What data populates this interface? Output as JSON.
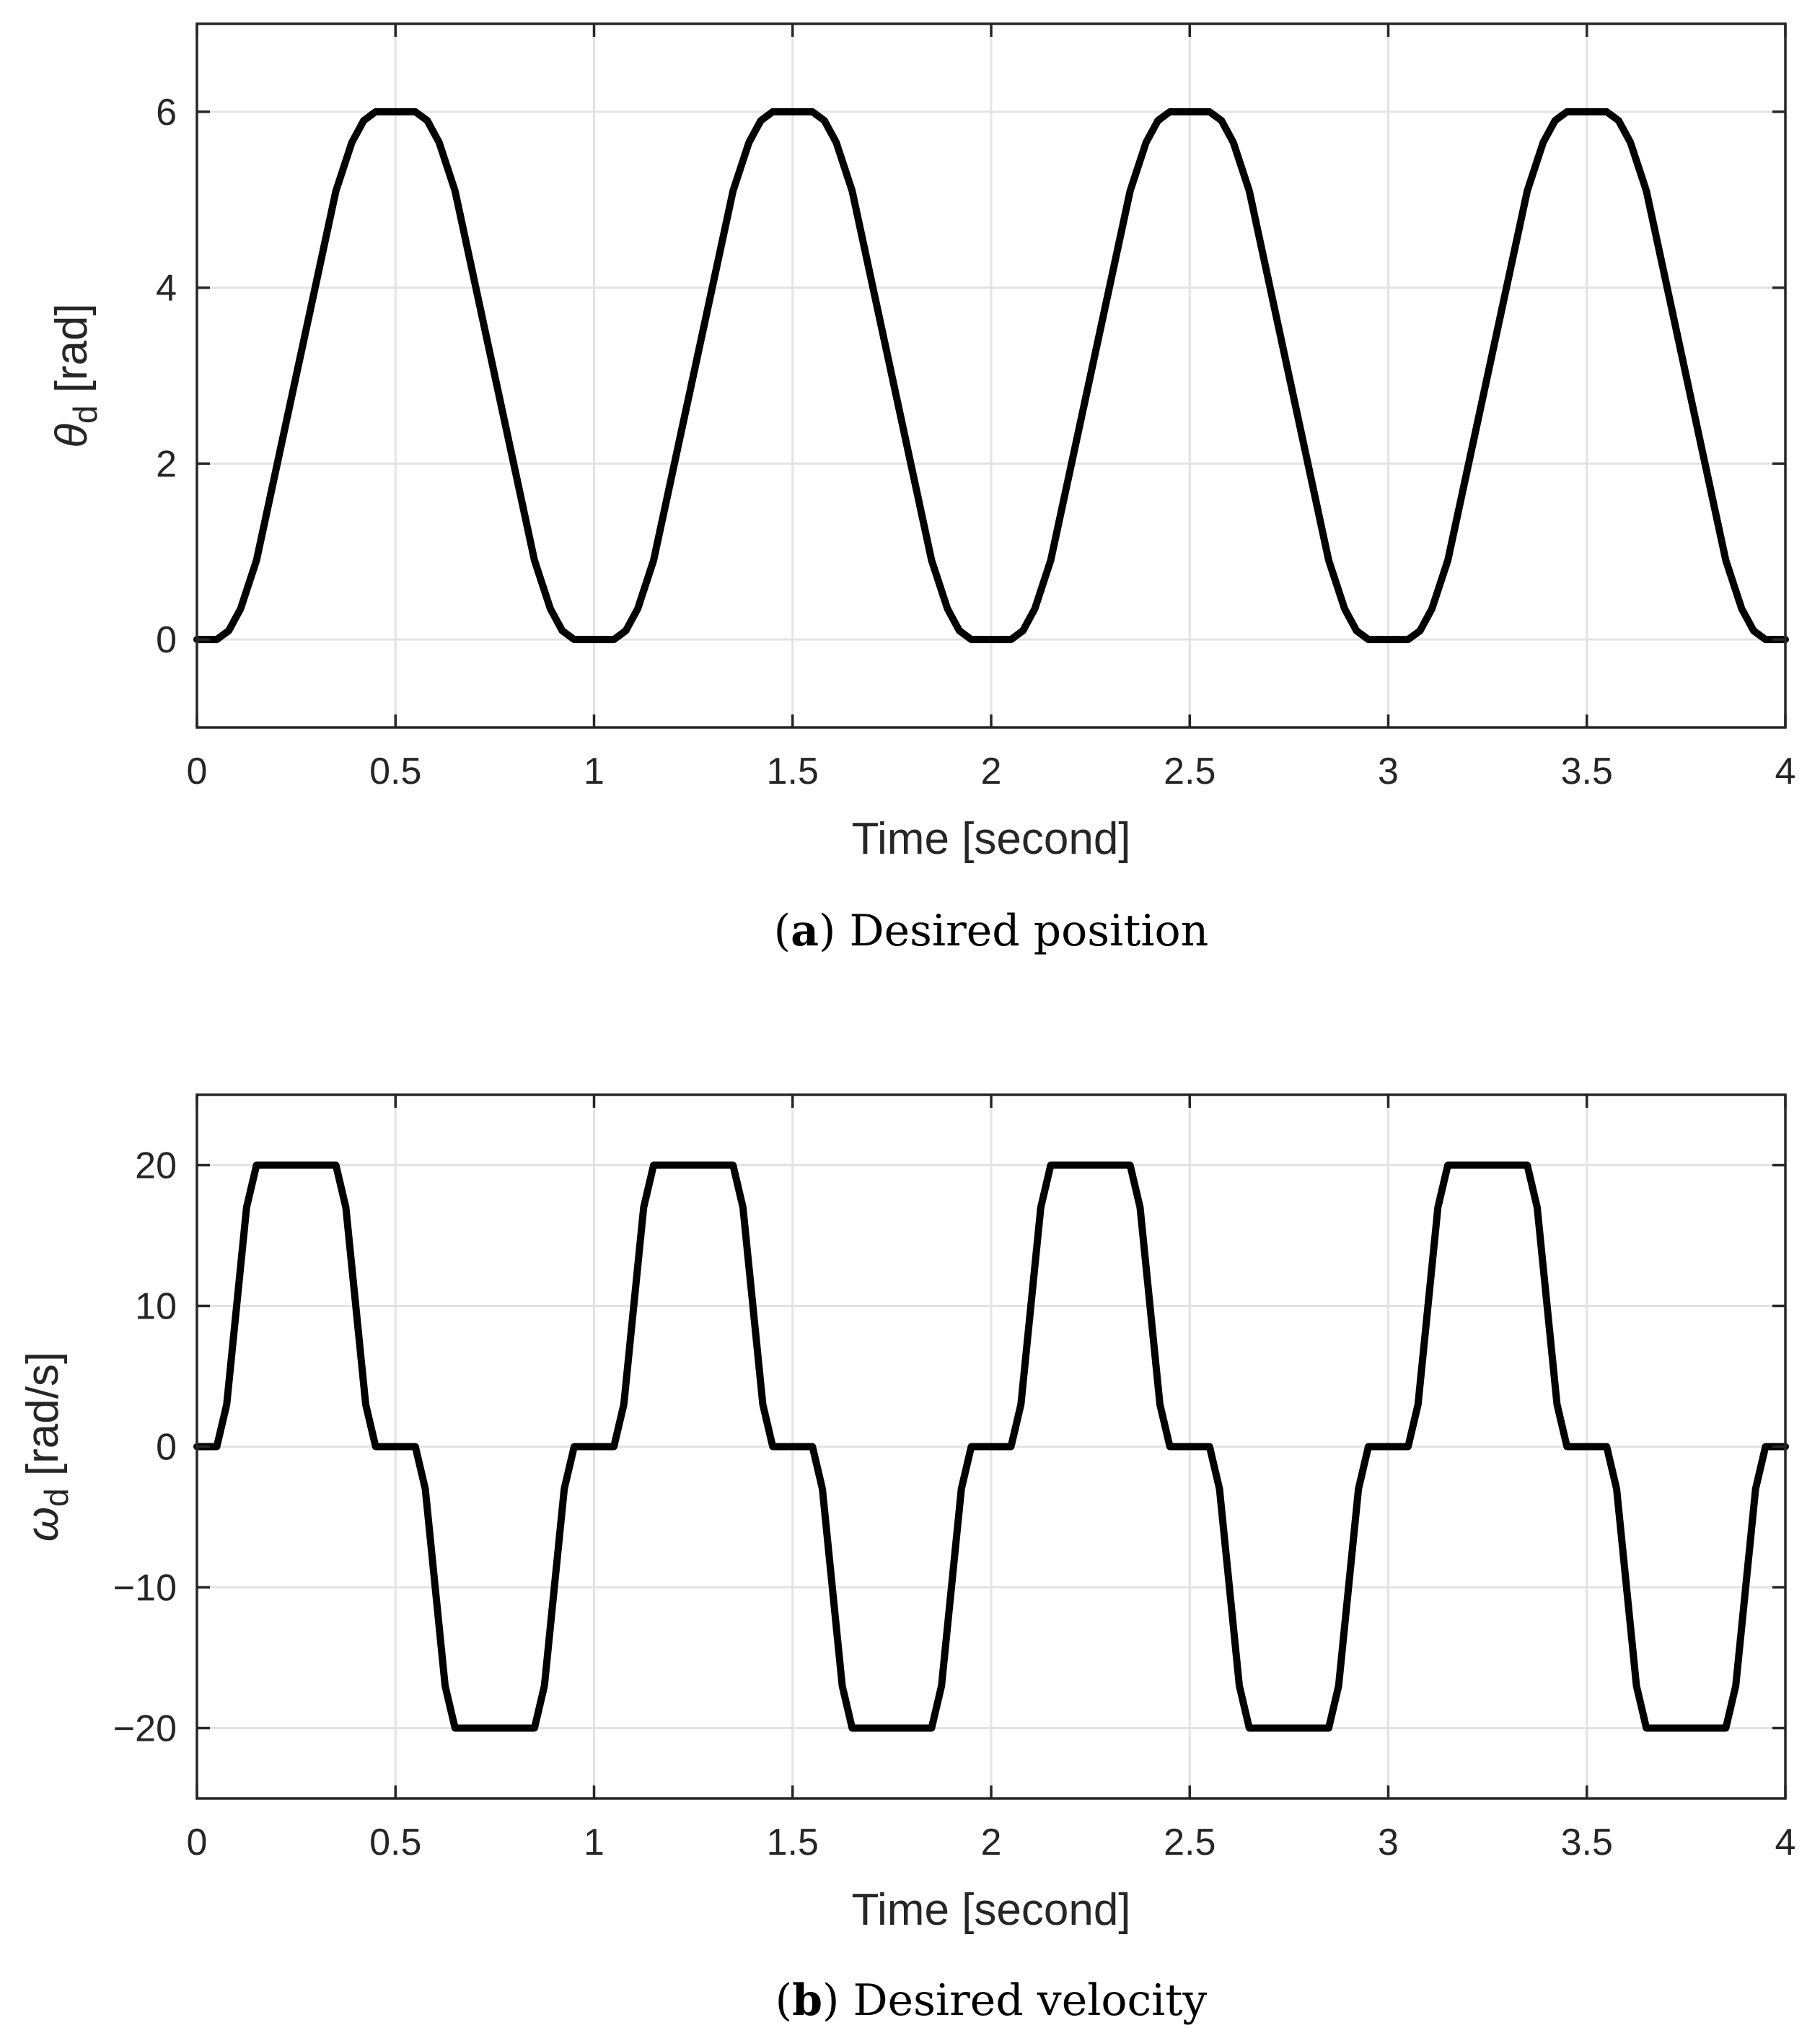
{
  "chart_data": [
    {
      "type": "line",
      "caption_letter": "a",
      "caption_text": "Desired position",
      "xlabel": "Time [second]",
      "ylabel_symbol": "θ",
      "ylabel_subscript": "d",
      "ylabel_unit": " [rad]",
      "xlim": [
        0,
        4
      ],
      "ylim": [
        -1,
        7
      ],
      "xticks": [
        0,
        0.5,
        1,
        1.5,
        2,
        2.5,
        3,
        3.5,
        4
      ],
      "xtick_labels": [
        "0",
        "0.5",
        "1",
        "1.5",
        "2",
        "2.5",
        "3",
        "3.5",
        "4"
      ],
      "yticks": [
        0,
        2,
        4,
        6
      ],
      "ytick_labels": [
        "0",
        "2",
        "4",
        "6"
      ],
      "grid": true,
      "series": [
        {
          "color": "#000000",
          "x": [
            0,
            0.05,
            0.08,
            0.11,
            0.15,
            0.35,
            0.39,
            0.42,
            0.45,
            0.55,
            0.58,
            0.61,
            0.65,
            0.85,
            0.89,
            0.92,
            0.95,
            1.05,
            1.08,
            1.11,
            1.15,
            1.35,
            1.39,
            1.42,
            1.45,
            1.55,
            1.58,
            1.61,
            1.65,
            1.85,
            1.89,
            1.92,
            1.95,
            2.05,
            2.08,
            2.11,
            2.15,
            2.35,
            2.39,
            2.42,
            2.45,
            2.55,
            2.58,
            2.61,
            2.65,
            2.85,
            2.89,
            2.92,
            2.95,
            3.05,
            3.08,
            3.11,
            3.15,
            3.35,
            3.39,
            3.42,
            3.45,
            3.55,
            3.58,
            3.61,
            3.65,
            3.85,
            3.89,
            3.92,
            3.95,
            4.0
          ],
          "y": [
            0,
            0,
            0.1,
            0.35,
            0.9,
            5.1,
            5.65,
            5.9,
            6,
            6,
            5.9,
            5.65,
            5.1,
            0.9,
            0.35,
            0.1,
            0,
            0,
            0.1,
            0.35,
            0.9,
            5.1,
            5.65,
            5.9,
            6,
            6,
            5.9,
            5.65,
            5.1,
            0.9,
            0.35,
            0.1,
            0,
            0,
            0.1,
            0.35,
            0.9,
            5.1,
            5.65,
            5.9,
            6,
            6,
            5.9,
            5.65,
            5.1,
            0.9,
            0.35,
            0.1,
            0,
            0,
            0.1,
            0.35,
            0.9,
            5.1,
            5.65,
            5.9,
            6,
            6,
            5.9,
            5.65,
            5.1,
            0.9,
            0.35,
            0.1,
            0,
            0
          ]
        }
      ]
    },
    {
      "type": "line",
      "caption_letter": "b",
      "caption_text": "Desired velocity",
      "xlabel": "Time [second]",
      "ylabel_symbol": "ω",
      "ylabel_subscript": "d",
      "ylabel_unit": " [rad/s]",
      "xlim": [
        0,
        4
      ],
      "ylim": [
        -25,
        25
      ],
      "xticks": [
        0,
        0.5,
        1,
        1.5,
        2,
        2.5,
        3,
        3.5,
        4
      ],
      "xtick_labels": [
        "0",
        "0.5",
        "1",
        "1.5",
        "2",
        "2.5",
        "3",
        "3.5",
        "4"
      ],
      "yticks": [
        -20,
        -10,
        0,
        10,
        20
      ],
      "ytick_labels": [
        "−20",
        "−10",
        "0",
        "10",
        "20"
      ],
      "grid": true,
      "series": [
        {
          "color": "#000000",
          "x": [
            0,
            0.05,
            0.075,
            0.1,
            0.125,
            0.15,
            0.35,
            0.375,
            0.4,
            0.425,
            0.45,
            0.55,
            0.575,
            0.6,
            0.625,
            0.65,
            0.85,
            0.875,
            0.9,
            0.925,
            0.95,
            1.05,
            1.075,
            1.1,
            1.125,
            1.15,
            1.35,
            1.375,
            1.4,
            1.425,
            1.45,
            1.55,
            1.575,
            1.6,
            1.625,
            1.65,
            1.85,
            1.875,
            1.9,
            1.925,
            1.95,
            2.05,
            2.075,
            2.1,
            2.125,
            2.15,
            2.35,
            2.375,
            2.4,
            2.425,
            2.45,
            2.55,
            2.575,
            2.6,
            2.625,
            2.65,
            2.85,
            2.875,
            2.9,
            2.925,
            2.95,
            3.05,
            3.075,
            3.1,
            3.125,
            3.15,
            3.35,
            3.375,
            3.4,
            3.425,
            3.45,
            3.55,
            3.575,
            3.6,
            3.625,
            3.65,
            3.85,
            3.875,
            3.9,
            3.925,
            3.95,
            4.0
          ],
          "y": [
            0,
            0,
            3,
            10,
            17,
            20,
            20,
            17,
            10,
            3,
            0,
            0,
            -3,
            -10,
            -17,
            -20,
            -20,
            -17,
            -10,
            -3,
            0,
            0,
            3,
            10,
            17,
            20,
            20,
            17,
            10,
            3,
            0,
            0,
            -3,
            -10,
            -17,
            -20,
            -20,
            -17,
            -10,
            -3,
            0,
            0,
            3,
            10,
            17,
            20,
            20,
            17,
            10,
            3,
            0,
            0,
            -3,
            -10,
            -17,
            -20,
            -20,
            -17,
            -10,
            -3,
            0,
            0,
            3,
            10,
            17,
            20,
            20,
            17,
            10,
            3,
            0,
            0,
            -3,
            -10,
            -17,
            -20,
            -20,
            -17,
            -10,
            -3,
            0,
            0
          ]
        }
      ]
    }
  ]
}
